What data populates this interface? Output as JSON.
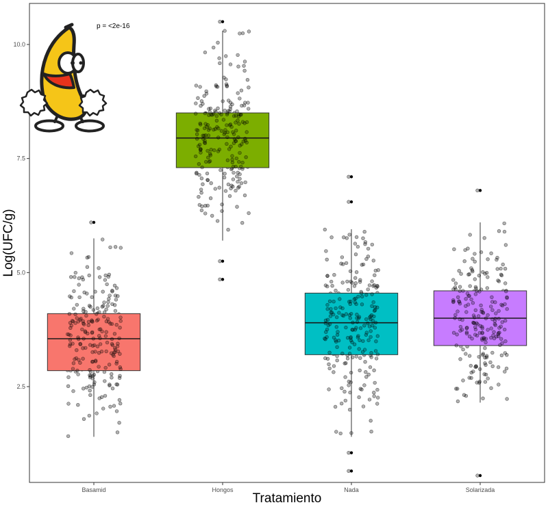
{
  "chart_data": {
    "type": "boxplot",
    "title": "",
    "xlabel": "Tratamiento",
    "ylabel": "Log(UFC/g)",
    "ylim": [
      0.4,
      10.9
    ],
    "yticks": [
      2.5,
      5.0,
      7.5,
      10.0
    ],
    "ytick_labels": [
      "2.5",
      "5.0",
      "7.5",
      "10.0"
    ],
    "grid": false,
    "annotation": "p = <2e-16",
    "categories": [
      "Basamid",
      "Hongos",
      "Nada",
      "Solarizada"
    ],
    "boxes": [
      {
        "category": "Basamid",
        "color": "#F8766D",
        "min": 1.4,
        "q1": 2.85,
        "median": 3.55,
        "q3": 4.1,
        "max": 5.75,
        "outliers": [
          6.1
        ]
      },
      {
        "category": "Hongos",
        "color": "#7CAE00",
        "min": 5.7,
        "q1": 7.3,
        "median": 7.95,
        "q3": 8.5,
        "max": 10.3,
        "outliers": [
          10.5,
          5.25,
          4.85
        ]
      },
      {
        "category": "Nada",
        "color": "#00BFC4",
        "min": 1.4,
        "q1": 3.2,
        "median": 3.9,
        "q3": 4.55,
        "max": 5.95,
        "outliers": [
          7.1,
          6.55,
          1.05,
          0.65
        ]
      },
      {
        "category": "Solarizada",
        "color": "#C77CFF",
        "min": 2.15,
        "q1": 3.4,
        "median": 4.0,
        "q3": 4.6,
        "max": 6.1,
        "outliers": [
          6.8,
          0.55
        ]
      }
    ]
  },
  "mascot": {
    "name": "dancing-banana",
    "fill": "#F5C518",
    "outline": "#222222",
    "mouth": "#E8331C"
  }
}
